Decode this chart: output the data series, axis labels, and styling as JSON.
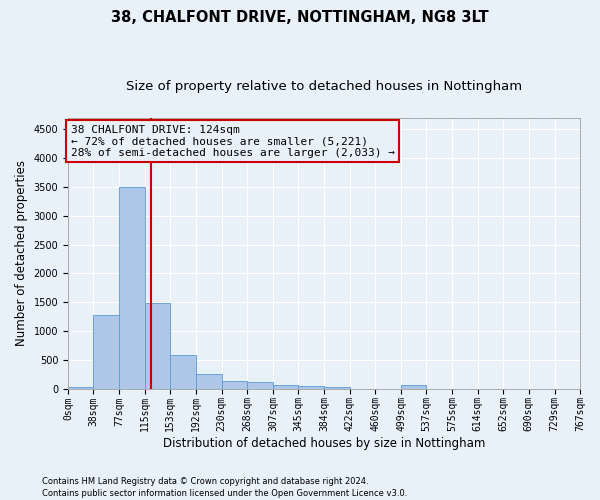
{
  "title1": "38, CHALFONT DRIVE, NOTTINGHAM, NG8 3LT",
  "title2": "Size of property relative to detached houses in Nottingham",
  "xlabel": "Distribution of detached houses by size in Nottingham",
  "ylabel": "Number of detached properties",
  "bin_edges": [
    0,
    38,
    77,
    115,
    153,
    192,
    230,
    268,
    307,
    345,
    384,
    422,
    460,
    499,
    537,
    575,
    614,
    652,
    690,
    729,
    767
  ],
  "bar_heights": [
    30,
    1270,
    3500,
    1480,
    580,
    255,
    130,
    120,
    70,
    45,
    30,
    0,
    0,
    55,
    0,
    0,
    0,
    0,
    0,
    0
  ],
  "bar_color": "#aec6e8",
  "bar_edgecolor": "#5b9bd5",
  "property_size": 124,
  "vline_color": "#cc0000",
  "annotation_line1": "38 CHALFONT DRIVE: 124sqm",
  "annotation_line2": "← 72% of detached houses are smaller (5,221)",
  "annotation_line3": "28% of semi-detached houses are larger (2,033) →",
  "annotation_box_edgecolor": "#cc0000",
  "ylim": [
    0,
    4700
  ],
  "yticks": [
    0,
    500,
    1000,
    1500,
    2000,
    2500,
    3000,
    3500,
    4000,
    4500
  ],
  "footer1": "Contains HM Land Registry data © Crown copyright and database right 2024.",
  "footer2": "Contains public sector information licensed under the Open Government Licence v3.0.",
  "background_color": "#e8f0f8",
  "grid_color": "#ffffff",
  "title1_fontsize": 10.5,
  "title2_fontsize": 9.5,
  "tick_fontsize": 7,
  "ylabel_fontsize": 8.5,
  "xlabel_fontsize": 8.5,
  "annotation_fontsize": 8
}
